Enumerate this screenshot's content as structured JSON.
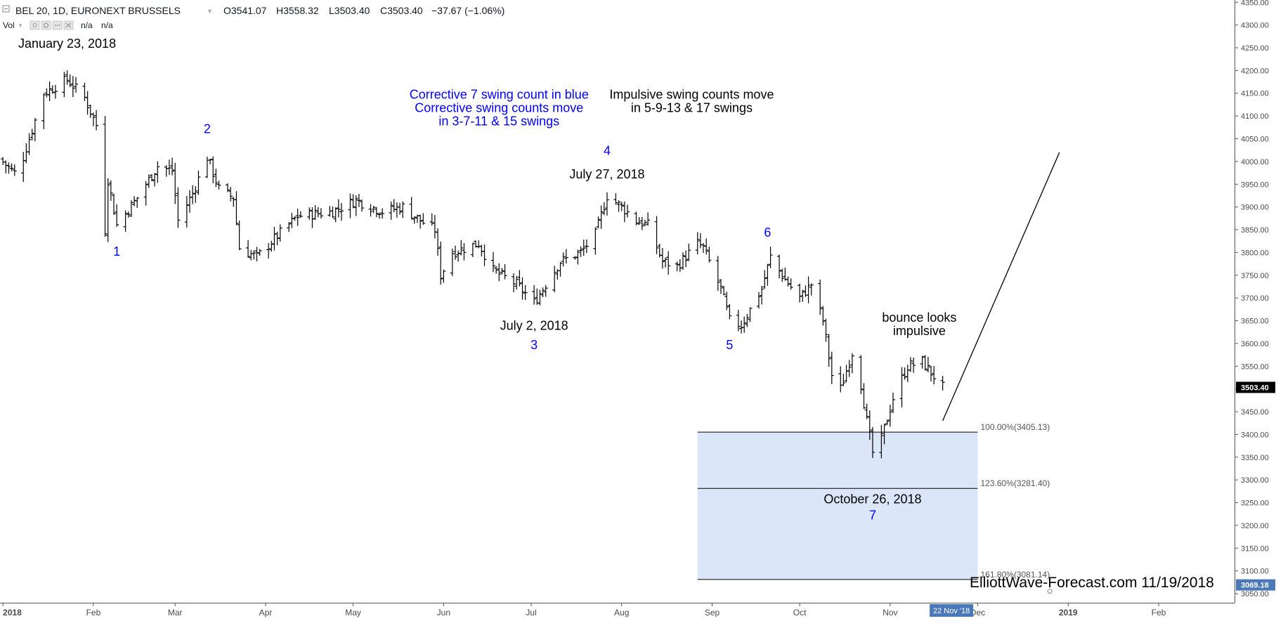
{
  "header": {
    "collapse_icon": "minus-box-icon",
    "symbol": "BEL 20, 1D, EURONEXT BRUSSELS",
    "dropdown_icon": "chevron-down-icon",
    "ohlc": {
      "open": "O3541.07",
      "high": "H3558.32",
      "low": "L3503.40",
      "close": "C3503.40",
      "change": "−37.67 (−1.06%)"
    },
    "vol_label": "Vol",
    "vol_values": [
      "n/a",
      "n/a"
    ]
  },
  "watermark": "ElliottWave-Forecast.com 11/19/2018",
  "colors": {
    "price_bar": "#000000",
    "count_label": "#0000ff",
    "fib_zone": "#dbe7f8",
    "axis_badge": "#4a78b8",
    "price_badge": "#000000"
  },
  "chart_data": {
    "type": "ohlc",
    "x_axis_labels": [
      "2018",
      "Feb",
      "Mar",
      "Apr",
      "May",
      "Jun",
      "Jul",
      "Aug",
      "Sep",
      "Oct",
      "Nov",
      "Dec",
      "2019",
      "Feb"
    ],
    "x_axis_dates": [
      "2018-01-01",
      "2018-02-01",
      "2018-03-01",
      "2018-04-01",
      "2018-05-01",
      "2018-06-01",
      "2018-07-01",
      "2018-08-01",
      "2018-09-01",
      "2018-10-01",
      "2018-11-01",
      "2018-12-01",
      "2019-01-01",
      "2019-02-01"
    ],
    "x_range": [
      "2017-12-31",
      "2019-02-27"
    ],
    "y_range": [
      3030,
      4355
    ],
    "y_ticks": [
      3050,
      3100,
      3150,
      3200,
      3250,
      3300,
      3350,
      3400,
      3450,
      3500,
      3550,
      3600,
      3650,
      3700,
      3750,
      3800,
      3850,
      3900,
      3950,
      4000,
      4050,
      4100,
      4150,
      4200,
      4250,
      4300,
      4350
    ],
    "y_tick_labels": [
      "3050.00",
      "3100.00",
      "3150.00",
      "3200.00",
      "3250.00",
      "3300.00",
      "3350.00",
      "3400.00",
      "3450.00",
      "3500.00",
      "3550.00",
      "3600.00",
      "3650.00",
      "3700.00",
      "3750.00",
      "3800.00",
      "3850.00",
      "3900.00",
      "3950.00",
      "4000.00",
      "4050.00",
      "4100.00",
      "4150.00",
      "4200.00",
      "4250.00",
      "4300.00",
      "4350.00"
    ],
    "waypoints": [
      [
        "2017-12-31",
        4005
      ],
      [
        "2018-01-05",
        3975
      ],
      [
        "2018-01-08",
        4010
      ],
      [
        "2018-01-15",
        4150
      ],
      [
        "2018-01-23",
        4180
      ],
      [
        "2018-01-29",
        4140
      ],
      [
        "2018-02-02",
        4080
      ],
      [
        "2018-02-05",
        3850
      ],
      [
        "2018-02-06",
        3960
      ],
      [
        "2018-02-09",
        3860
      ],
      [
        "2018-02-16",
        3920
      ],
      [
        "2018-02-23",
        3990
      ],
      [
        "2018-02-28",
        3980
      ],
      [
        "2018-03-02",
        3870
      ],
      [
        "2018-03-07",
        3930
      ],
      [
        "2018-03-12",
        4010
      ],
      [
        "2018-03-16",
        3940
      ],
      [
        "2018-03-21",
        3920
      ],
      [
        "2018-03-23",
        3810
      ],
      [
        "2018-03-29",
        3790
      ],
      [
        "2018-04-04",
        3830
      ],
      [
        "2018-04-12",
        3880
      ],
      [
        "2018-04-24",
        3890
      ],
      [
        "2018-05-02",
        3915
      ],
      [
        "2018-05-11",
        3890
      ],
      [
        "2018-05-18",
        3900
      ],
      [
        "2018-05-24",
        3870
      ],
      [
        "2018-05-29",
        3850
      ],
      [
        "2018-05-31",
        3750
      ],
      [
        "2018-06-04",
        3800
      ],
      [
        "2018-06-13",
        3820
      ],
      [
        "2018-06-18",
        3760
      ],
      [
        "2018-06-26",
        3730
      ],
      [
        "2018-07-02",
        3690
      ],
      [
        "2018-07-06",
        3730
      ],
      [
        "2018-07-11",
        3780
      ],
      [
        "2018-07-18",
        3800
      ],
      [
        "2018-07-23",
        3840
      ],
      [
        "2018-07-27",
        3925
      ],
      [
        "2018-08-01",
        3900
      ],
      [
        "2018-08-06",
        3870
      ],
      [
        "2018-08-10",
        3860
      ],
      [
        "2018-08-15",
        3780
      ],
      [
        "2018-08-20",
        3770
      ],
      [
        "2018-08-27",
        3820
      ],
      [
        "2018-08-29",
        3810
      ],
      [
        "2018-09-04",
        3720
      ],
      [
        "2018-09-07",
        3650
      ],
      [
        "2018-09-11",
        3640
      ],
      [
        "2018-09-18",
        3720
      ],
      [
        "2018-09-21",
        3790
      ],
      [
        "2018-09-26",
        3740
      ],
      [
        "2018-10-01",
        3700
      ],
      [
        "2018-10-05",
        3730
      ],
      [
        "2018-10-09",
        3650
      ],
      [
        "2018-10-12",
        3530
      ],
      [
        "2018-10-15",
        3500
      ],
      [
        "2018-10-19",
        3580
      ],
      [
        "2018-10-22",
        3510
      ],
      [
        "2018-10-24",
        3430
      ],
      [
        "2018-10-26",
        3360
      ],
      [
        "2018-10-29",
        3390
      ],
      [
        "2018-11-02",
        3480
      ],
      [
        "2018-11-07",
        3550
      ],
      [
        "2018-11-12",
        3560
      ],
      [
        "2018-11-19",
        3503.4
      ]
    ],
    "fibonacci_zone": {
      "start": "2018-08-27",
      "end": "2018-12-01",
      "levels": [
        {
          "value": 3405.13,
          "label": "100.00%(3405.13)"
        },
        {
          "value": 3281.4,
          "label": "123.60%(3281.40)"
        },
        {
          "value": 3081.14,
          "label": "161.80%(3081.14)"
        }
      ]
    },
    "projection_line": {
      "from": [
        "2018-11-19",
        3430
      ],
      "to": [
        "2018-12-29",
        4020
      ]
    },
    "swing_counts": [
      {
        "label": "1",
        "date": "2018-02-09",
        "value": 3800
      },
      {
        "label": "2",
        "date": "2018-03-12",
        "value": 4070
      },
      {
        "label": "3",
        "date": "2018-07-02",
        "value": 3595
      },
      {
        "label": "4",
        "date": "2018-07-27",
        "value": 4022
      },
      {
        "label": "5",
        "date": "2018-09-07",
        "value": 3595
      },
      {
        "label": "6",
        "date": "2018-09-20",
        "value": 3842
      },
      {
        "label": "7",
        "date": "2018-10-26",
        "value": 3220
      }
    ],
    "date_annotations": [
      {
        "text": "January 23, 2018",
        "date": "2018-01-23",
        "value": 4257
      },
      {
        "text": "July 27, 2018",
        "date": "2018-07-27",
        "value": 3970
      },
      {
        "text": "July 2, 2018",
        "date": "2018-07-02",
        "value": 3637
      },
      {
        "text": "October 26, 2018",
        "date": "2018-10-26",
        "value": 3256
      }
    ],
    "notes": [
      {
        "lines": [
          "Corrective 7 swing count in blue",
          "Corrective swing counts move",
          "in 3-7-11 & 15 swings"
        ],
        "date": "2018-06-20",
        "value": 4145,
        "color": "#0000ff"
      },
      {
        "lines": [
          "Impulsive swing counts move",
          "in 5-9-13 & 17 swings"
        ],
        "date": "2018-08-25",
        "value": 4145,
        "color": "#000000"
      },
      {
        "lines": [
          "bounce looks",
          "impulsive"
        ],
        "date": "2018-11-11",
        "value": 3655,
        "color": "#000000"
      }
    ],
    "last_price": {
      "value": 3503.4,
      "label": "3503.40"
    },
    "cursor": {
      "value": 3069.18,
      "label": "3069.18",
      "date": "2018-11-22",
      "date_label": "22 Nov '18"
    }
  }
}
